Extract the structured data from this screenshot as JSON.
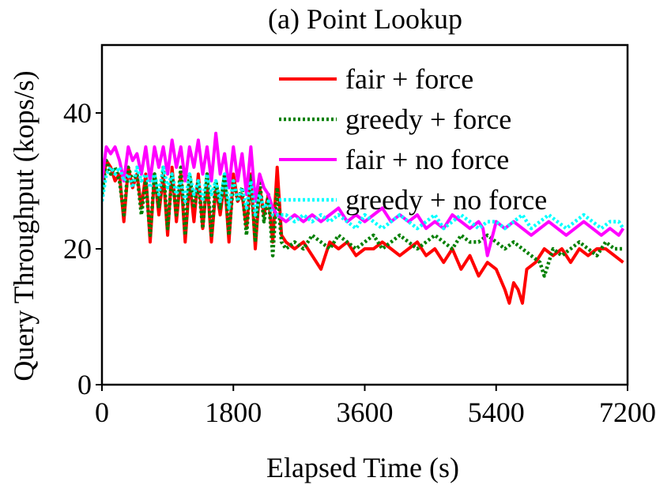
{
  "chart_data": {
    "type": "line",
    "title": "(a) Point Lookup",
    "xlabel": "Elapsed Time (s)",
    "ylabel": "Query Throughput (kops/s)",
    "xlim": [
      0,
      7200
    ],
    "ylim": [
      0,
      50
    ],
    "xticks": [
      0,
      1800,
      3600,
      5400,
      7200
    ],
    "yticks": [
      0,
      20,
      40
    ],
    "legend_position": "top-right",
    "series": [
      {
        "name": "fair + force",
        "color": "#ff0000",
        "style": "solid",
        "x": [
          0,
          60,
          120,
          180,
          240,
          300,
          360,
          420,
          480,
          540,
          600,
          660,
          720,
          780,
          840,
          900,
          960,
          1020,
          1080,
          1140,
          1200,
          1260,
          1320,
          1380,
          1440,
          1500,
          1560,
          1620,
          1680,
          1740,
          1800,
          1860,
          1920,
          1980,
          2040,
          2100,
          2160,
          2220,
          2280,
          2340,
          2400,
          2460,
          2520,
          2640,
          2760,
          2880,
          3000,
          3120,
          3240,
          3360,
          3480,
          3600,
          3720,
          3840,
          3960,
          4080,
          4200,
          4320,
          4440,
          4560,
          4680,
          4800,
          4920,
          5040,
          5160,
          5280,
          5400,
          5520,
          5580,
          5640,
          5700,
          5760,
          5820,
          5940,
          6060,
          6180,
          6300,
          6420,
          6540,
          6660,
          6780,
          6900,
          7020,
          7140
        ],
        "y": [
          29,
          33,
          32,
          30,
          31,
          24,
          32,
          29,
          31,
          26,
          31,
          21,
          31,
          25,
          31,
          22,
          32,
          24,
          31,
          21,
          30,
          24,
          31,
          23,
          30,
          21,
          29,
          25,
          30,
          21,
          31,
          27,
          28,
          23,
          31,
          20,
          29,
          25,
          28,
          21,
          32,
          22,
          21,
          20,
          21,
          19,
          17,
          21,
          20,
          21,
          19,
          20,
          20,
          21,
          20,
          19,
          20,
          21,
          19,
          20,
          18,
          20,
          17,
          19,
          16,
          18,
          17,
          14,
          12,
          15,
          14,
          12,
          17,
          18,
          20,
          19,
          20,
          18,
          20,
          19,
          20,
          20,
          19,
          18
        ]
      },
      {
        "name": "greedy + force",
        "color": "#007f00",
        "style": "dotted",
        "x": [
          0,
          60,
          120,
          180,
          240,
          300,
          360,
          420,
          480,
          540,
          600,
          660,
          720,
          780,
          840,
          900,
          960,
          1020,
          1080,
          1140,
          1200,
          1260,
          1320,
          1380,
          1440,
          1500,
          1560,
          1620,
          1680,
          1740,
          1800,
          1860,
          1920,
          1980,
          2040,
          2100,
          2160,
          2220,
          2280,
          2340,
          2400,
          2460,
          2520,
          2640,
          2760,
          2880,
          3000,
          3120,
          3240,
          3360,
          3480,
          3600,
          3720,
          3840,
          3960,
          4080,
          4200,
          4320,
          4440,
          4560,
          4680,
          4800,
          4920,
          5040,
          5160,
          5280,
          5400,
          5520,
          5640,
          5760,
          5880,
          6000,
          6060,
          6180,
          6300,
          6420,
          6540,
          6660,
          6780,
          6900,
          7020,
          7140
        ],
        "y": [
          28,
          33,
          31,
          32,
          30,
          25,
          32,
          30,
          31,
          25,
          30,
          22,
          31,
          26,
          32,
          23,
          31,
          25,
          32,
          22,
          31,
          26,
          30,
          23,
          31,
          22,
          30,
          26,
          31,
          22,
          30,
          27,
          29,
          22,
          31,
          21,
          30,
          24,
          28,
          19,
          29,
          21,
          20,
          21,
          20,
          22,
          21,
          20,
          22,
          21,
          20,
          21,
          22,
          20,
          21,
          22,
          21,
          20,
          21,
          22,
          21,
          20,
          22,
          21,
          21,
          22,
          21,
          20,
          21,
          20,
          19,
          18,
          16,
          20,
          19,
          20,
          21,
          20,
          19,
          21,
          20,
          20
        ]
      },
      {
        "name": "fair + no force",
        "color": "#ff00ff",
        "style": "solid",
        "x": [
          0,
          60,
          120,
          180,
          240,
          300,
          360,
          420,
          480,
          540,
          600,
          660,
          720,
          780,
          840,
          900,
          960,
          1020,
          1080,
          1140,
          1200,
          1260,
          1320,
          1380,
          1440,
          1500,
          1560,
          1620,
          1680,
          1740,
          1800,
          1860,
          1920,
          1980,
          2040,
          2100,
          2160,
          2220,
          2280,
          2340,
          2400,
          2520,
          2640,
          2760,
          2880,
          3000,
          3120,
          3240,
          3360,
          3480,
          3600,
          3720,
          3840,
          3960,
          4080,
          4200,
          4320,
          4440,
          4560,
          4680,
          4800,
          4920,
          5040,
          5160,
          5220,
          5280,
          5400,
          5520,
          5640,
          5760,
          5880,
          6000,
          6120,
          6240,
          6360,
          6480,
          6600,
          6720,
          6840,
          6960,
          7080,
          7140
        ],
        "y": [
          30,
          35,
          34,
          35,
          33,
          30,
          35,
          33,
          34,
          31,
          35,
          30,
          35,
          32,
          35,
          31,
          36,
          32,
          35,
          30,
          35,
          32,
          36,
          31,
          35,
          30,
          37,
          31,
          34,
          29,
          35,
          30,
          34,
          28,
          35,
          27,
          31,
          29,
          28,
          26,
          25,
          24,
          25,
          24,
          25,
          24,
          25,
          26,
          24,
          25,
          24,
          25,
          26,
          24,
          25,
          24,
          25,
          23,
          24,
          23,
          25,
          24,
          23,
          24,
          23,
          19,
          24,
          23,
          24,
          23,
          22,
          23,
          24,
          23,
          22,
          23,
          24,
          23,
          22,
          23,
          22,
          23
        ]
      },
      {
        "name": "greedy + no force",
        "color": "#00ffff",
        "style": "dotted",
        "x": [
          0,
          60,
          120,
          180,
          240,
          300,
          360,
          420,
          480,
          540,
          600,
          660,
          720,
          780,
          840,
          900,
          960,
          1020,
          1080,
          1140,
          1200,
          1260,
          1320,
          1380,
          1440,
          1500,
          1560,
          1620,
          1680,
          1740,
          1800,
          1860,
          1920,
          1980,
          2040,
          2100,
          2160,
          2220,
          2280,
          2340,
          2400,
          2520,
          2640,
          2760,
          2880,
          3000,
          3120,
          3240,
          3360,
          3480,
          3600,
          3720,
          3840,
          3960,
          4080,
          4200,
          4320,
          4440,
          4560,
          4680,
          4800,
          4920,
          5040,
          5160,
          5280,
          5400,
          5520,
          5640,
          5760,
          5880,
          6000,
          6120,
          6240,
          6360,
          6480,
          6600,
          6720,
          6840,
          6960,
          7080,
          7140
        ],
        "y": [
          27,
          31,
          32,
          31,
          32,
          30,
          31,
          29,
          32,
          30,
          31,
          29,
          31,
          28,
          32,
          29,
          31,
          28,
          30,
          27,
          31,
          28,
          30,
          27,
          31,
          28,
          30,
          27,
          31,
          26,
          30,
          27,
          29,
          26,
          30,
          25,
          28,
          26,
          27,
          25,
          25,
          25,
          24,
          25,
          24,
          25,
          24,
          25,
          24,
          23,
          25,
          24,
          23,
          24,
          25,
          24,
          23,
          24,
          25,
          23,
          24,
          25,
          24,
          23,
          24,
          24,
          23,
          24,
          25,
          23,
          24,
          25,
          24,
          23,
          24,
          25,
          24,
          23,
          24,
          24,
          23
        ]
      }
    ]
  }
}
